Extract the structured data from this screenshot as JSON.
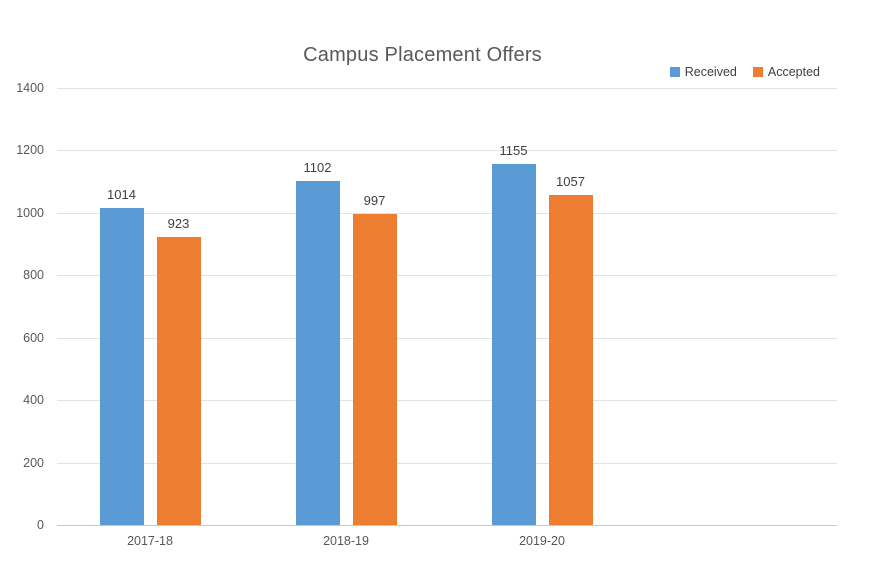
{
  "chart_data": {
    "type": "bar",
    "title": "Campus Placement Offers",
    "categories": [
      "2017-18",
      "2018-19",
      "2019-20"
    ],
    "series": [
      {
        "name": "Received",
        "color": "#5B9BD5",
        "values": [
          1014,
          1102,
          1155
        ]
      },
      {
        "name": "Accepted",
        "color": "#ED7D31",
        "values": [
          923,
          997,
          1057
        ]
      }
    ],
    "ylim": [
      0,
      1400
    ],
    "yticks": [
      0,
      200,
      400,
      600,
      800,
      1000,
      1200,
      1400
    ],
    "grid": true,
    "legend_position": "top-right",
    "data_labels": true,
    "colors": {
      "gridline": "#e2e2e2",
      "axis_line": "#c8c8c8",
      "title_text": "#595959",
      "tick_text": "#595959",
      "data_label_text": "#3f3f3f",
      "background": "#ffffff"
    }
  }
}
